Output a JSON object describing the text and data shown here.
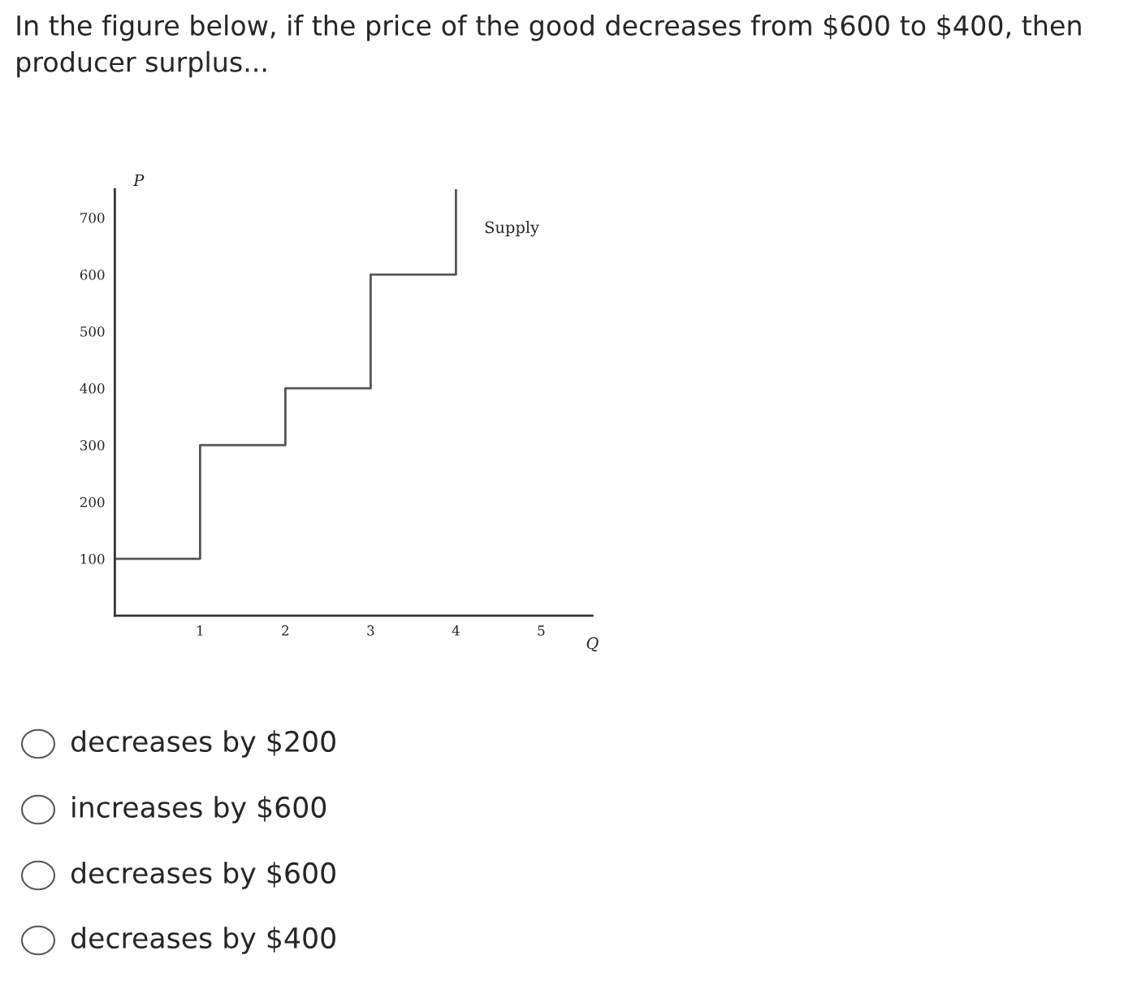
{
  "chart_data": {
    "type": "step",
    "title": "In the figure below, if the price of the good decreases from $600 to $400, then producer surplus...",
    "xlabel": "Q",
    "ylabel": "P",
    "series": [
      {
        "name": "Supply",
        "x": [
          0,
          1,
          2,
          3,
          4,
          4
        ],
        "values": [
          100,
          300,
          400,
          600,
          600,
          750
        ],
        "color": "#555555"
      }
    ],
    "xlim": [
      0,
      5.6
    ],
    "xticks": [
      1,
      2,
      3,
      4,
      5
    ],
    "ylim": [
      0,
      750
    ],
    "yticks": [
      100,
      200,
      300,
      400,
      500,
      600,
      700
    ],
    "grid": false,
    "legend": false,
    "annotations": [
      "decreases by $200",
      "increases by $600",
      "decreases by $600",
      "decreases by $400"
    ]
  }
}
